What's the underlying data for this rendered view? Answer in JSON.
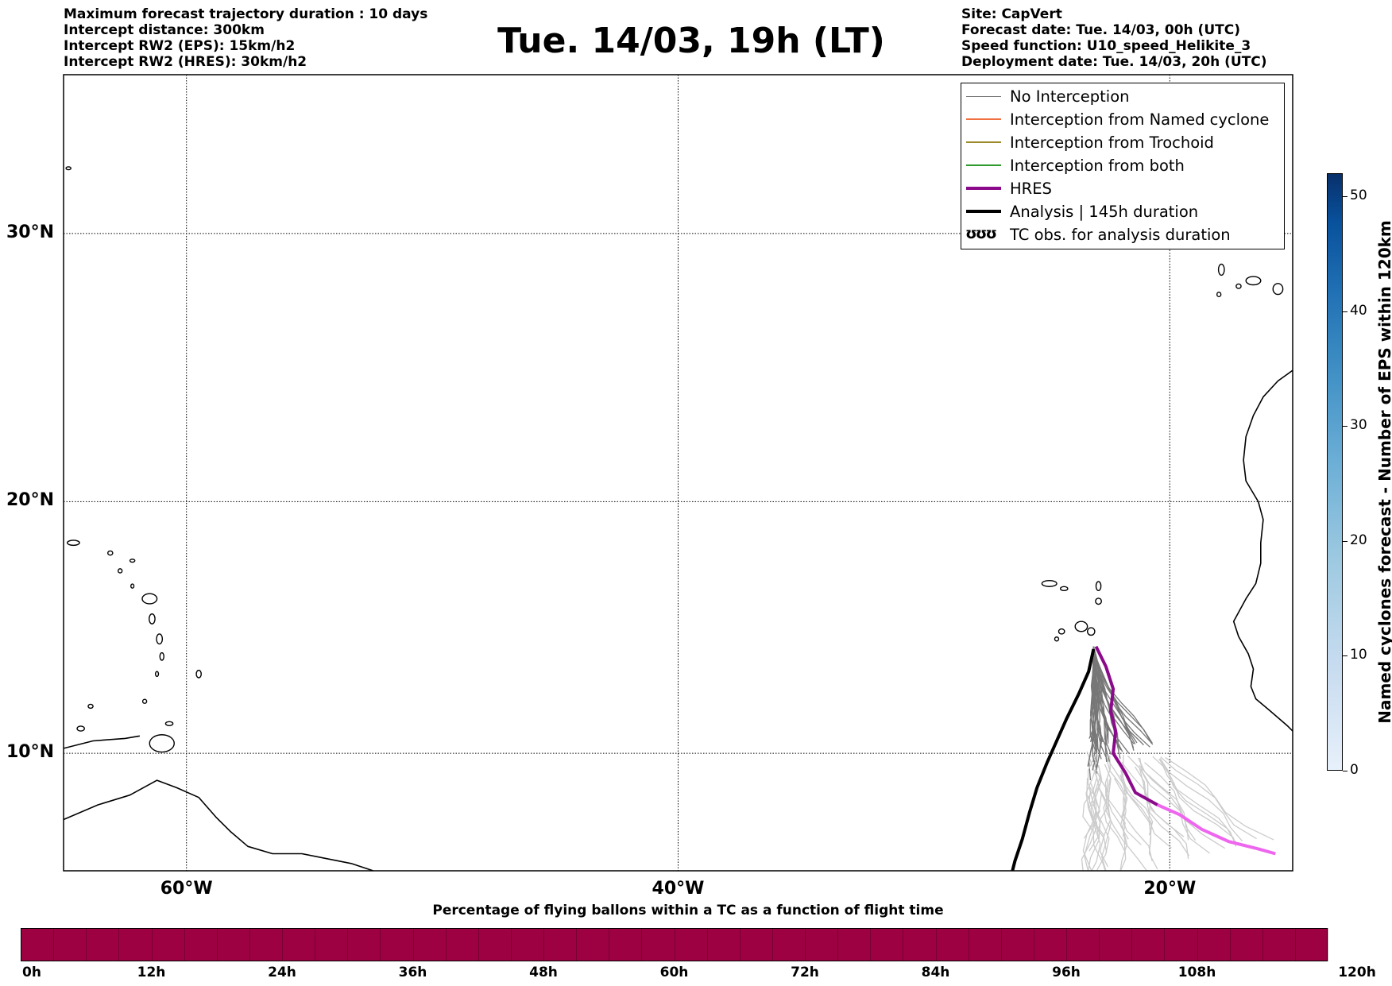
{
  "header": {
    "left_lines": [
      "Maximum forecast trajectory duration : 10 days",
      "Intercept distance: 300km",
      "Intercept RW2 (EPS):  15km/h2",
      "Intercept RW2 (HRES): 30km/h2"
    ],
    "title": "Tue. 14/03, 19h (LT)",
    "right_lines": [
      "Site: CapVert",
      "Forecast date: Tue. 14/03, 00h (UTC)",
      "Speed function: U10_speed_Helikite_3",
      "Deployment date: Tue. 14/03, 20h (UTC)"
    ]
  },
  "map": {
    "projection": "mercator",
    "lon_range": [
      -65,
      -15
    ],
    "lat_range": [
      5.2,
      35.5
    ],
    "grid": true,
    "lat_ticks": [
      {
        "value": 30,
        "label": "30°N"
      },
      {
        "value": 20,
        "label": "20°N"
      },
      {
        "value": 10,
        "label": "10°N"
      }
    ],
    "lon_ticks": [
      {
        "value": -60,
        "label": "60°W"
      },
      {
        "value": -40,
        "label": "40°W"
      },
      {
        "value": -20,
        "label": "20°W"
      }
    ],
    "coast_color": "#000000"
  },
  "tracks": {
    "colors": {
      "no_interception": "#777777",
      "eps_late": "#cccccc",
      "hres": "#8b0a8b",
      "hres_late": "#ee66ee",
      "analysis": "#000000"
    },
    "analysis": [
      [
        -23.1,
        14.2
      ],
      [
        -23.3,
        13.3
      ],
      [
        -23.7,
        12.4
      ],
      [
        -24.2,
        11.4
      ],
      [
        -24.6,
        10.5
      ],
      [
        -25.0,
        9.6
      ],
      [
        -25.4,
        8.6
      ],
      [
        -25.7,
        7.6
      ],
      [
        -26.0,
        6.5
      ],
      [
        -26.3,
        5.6
      ],
      [
        -26.4,
        5.2
      ]
    ],
    "hres": [
      [
        -23.0,
        14.3
      ],
      [
        -22.6,
        13.5
      ],
      [
        -22.3,
        12.6
      ],
      [
        -22.4,
        11.7
      ],
      [
        -22.2,
        10.9
      ],
      [
        -22.3,
        10.0
      ],
      [
        -21.8,
        9.2
      ],
      [
        -21.4,
        8.4
      ],
      [
        -20.5,
        7.9
      ],
      [
        -19.6,
        7.5
      ],
      [
        -18.7,
        6.9
      ],
      [
        -17.6,
        6.4
      ],
      [
        -16.4,
        6.1
      ],
      [
        -15.7,
        5.9
      ]
    ],
    "hres_late_from_index": 8,
    "eps_count": 40
  },
  "legend": {
    "placement": "top-right",
    "items": [
      {
        "label": "No Interception",
        "color": "#777777",
        "width": 1
      },
      {
        "label": "Interception from Named cyclone",
        "color": "#f07040",
        "width": 1.5
      },
      {
        "label": "Interception from Trochoid",
        "color": "#9a8a2a",
        "width": 1.5
      },
      {
        "label": "Interception from both",
        "color": "#2e9a2e",
        "width": 1.5
      },
      {
        "label": "HRES",
        "color": "#8b0a8b",
        "width": 4
      },
      {
        "label": "Analysis | 145h duration",
        "color": "#000000",
        "width": 4
      }
    ],
    "tc_symbol": "ʊʊʊ",
    "tc_label": "TC obs. for analysis duration"
  },
  "colorbar_vertical": {
    "label": "Named cyclones forecast - Number of EPS within 120km",
    "ticks": [
      {
        "value": 0,
        "label": "0"
      },
      {
        "value": 10,
        "label": "10"
      },
      {
        "value": 20,
        "label": "20"
      },
      {
        "value": 30,
        "label": "30"
      },
      {
        "value": 40,
        "label": "40"
      },
      {
        "value": 50,
        "label": "50"
      }
    ],
    "max": 52
  },
  "colorbar_horizontal": {
    "title": "Percentage of flying ballons within a TC as a function of flight time",
    "color": "#9e0142",
    "ticks": [
      "0h",
      "12h",
      "24h",
      "36h",
      "48h",
      "60h",
      "72h",
      "84h",
      "96h",
      "108h",
      "120h"
    ]
  }
}
